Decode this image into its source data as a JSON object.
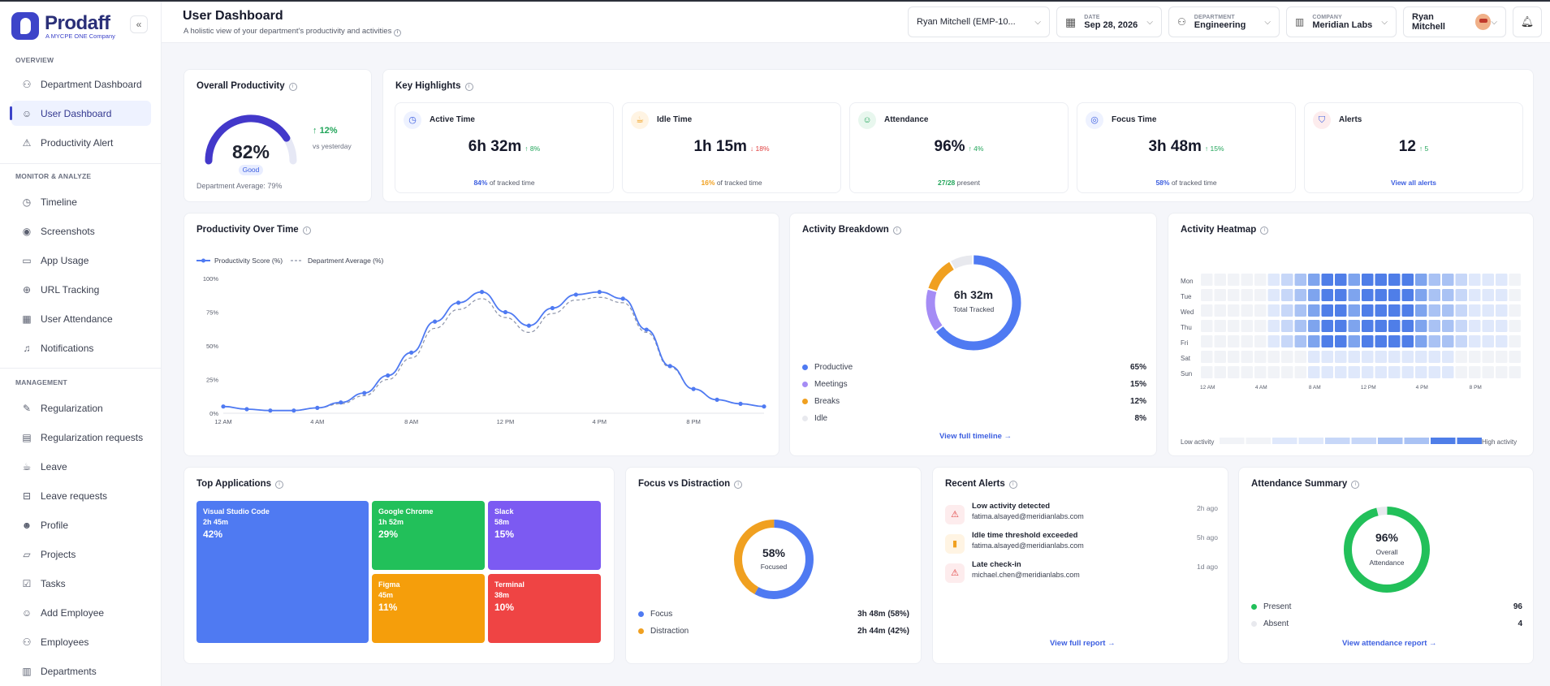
{
  "brand": {
    "name": "Prodaff",
    "tagline": "A MYCPE ONE Company"
  },
  "sidebar": {
    "sections": [
      "OVERVIEW",
      "MONITOR & ANALYZE",
      "MANAGEMENT"
    ],
    "items": [
      {
        "label": "Department Dashboard",
        "icon": "users-icon"
      },
      {
        "label": "User Dashboard",
        "icon": "user-icon"
      },
      {
        "label": "Productivity Alert",
        "icon": "warning-icon"
      },
      {
        "label": "Timeline",
        "icon": "clock-icon"
      },
      {
        "label": "Screenshots",
        "icon": "camera-icon"
      },
      {
        "label": "App Usage",
        "icon": "monitor-icon"
      },
      {
        "label": "URL Tracking",
        "icon": "globe-icon"
      },
      {
        "label": "User Attendance",
        "icon": "calendar-icon"
      },
      {
        "label": "Notifications",
        "icon": "bell-icon"
      },
      {
        "label": "Regularization",
        "icon": "edit-icon"
      },
      {
        "label": "Regularization requests",
        "icon": "document-icon"
      },
      {
        "label": "Leave",
        "icon": "cup-icon"
      },
      {
        "label": "Leave requests",
        "icon": "inbox-icon"
      },
      {
        "label": "Profile",
        "icon": "profile-icon"
      },
      {
        "label": "Projects",
        "icon": "folder-icon"
      },
      {
        "label": "Tasks",
        "icon": "check-icon"
      },
      {
        "label": "Add Employee",
        "icon": "user-plus-icon"
      },
      {
        "label": "Employees",
        "icon": "team-icon"
      },
      {
        "label": "Departments",
        "icon": "building-icon"
      }
    ]
  },
  "header": {
    "title": "User Dashboard",
    "subtitle": "A holistic view of your department's productivity and activities",
    "employee": "Ryan Mitchell (EMP-10...",
    "date_label": "DATE",
    "date_value": "Sep 28, 2026",
    "department_label": "DEPARTMENT",
    "department_value": "Engineering",
    "company_label": "COMPANY",
    "company_value": "Meridian Labs",
    "user_name": "Ryan Mitchell"
  },
  "overall": {
    "title": "Overall Productivity",
    "value": "82%",
    "value_num": 82,
    "status": "Good",
    "change": "12%",
    "change_label": "vs yesterday",
    "dept_avg": "Department Average: 79%"
  },
  "highlights": {
    "title": "Key Highlights",
    "items": [
      {
        "name": "Active Time",
        "value": "6h 32m",
        "delta": "↑ 8%",
        "foot_value": "84%",
        "foot_text": " of tracked time",
        "color": "#3d5fe0",
        "bg": "#eef2ff",
        "delta_color": "#22a55a",
        "icon": "clock-icon",
        "glyph": "◷"
      },
      {
        "name": "Idle Time",
        "value": "1h 15m",
        "delta": "↓ 18%",
        "foot_value": "16%",
        "foot_text": " of tracked time",
        "color": "#f0a020",
        "bg": "#fff4e3",
        "delta_color": "#e04040",
        "icon": "coffee-icon",
        "glyph": "☕"
      },
      {
        "name": "Attendance",
        "value": "96%",
        "delta": "↑ 4%",
        "foot_value": "27/28",
        "foot_text": " present",
        "color": "#22a55a",
        "bg": "#e8f7ee",
        "delta_color": "#22a55a",
        "icon": "users-icon",
        "glyph": "☺"
      },
      {
        "name": "Focus Time",
        "value": "3h 48m",
        "delta": "↑ 15%",
        "foot_value": "58%",
        "foot_text": " of tracked time",
        "color": "#3d5fe0",
        "bg": "#eef2ff",
        "delta_color": "#22a55a",
        "icon": "target-icon",
        "glyph": "◎"
      },
      {
        "name": "Alerts",
        "value": "12",
        "delta": "↑ 5",
        "foot_value": "View all alerts",
        "foot_text": "",
        "color": "#3d5fe0",
        "bg": "#fdeced",
        "delta_color": "#22a55a",
        "icon": "shield-icon",
        "glyph": "⛉"
      }
    ]
  },
  "prod_chart": {
    "title": "Productivity Over Time",
    "chart_data": {
      "type": "line",
      "title": "Productivity Over Time",
      "x": [
        "12 AM",
        "1 AM",
        "2 AM",
        "3 AM",
        "4 AM",
        "5 AM",
        "6 AM",
        "7 AM",
        "8 AM",
        "9 AM",
        "10 AM",
        "11 AM",
        "12 PM",
        "1 PM",
        "2 PM",
        "3 PM",
        "4 PM",
        "5 PM",
        "6 PM",
        "7 PM",
        "8 PM",
        "9 PM",
        "10 PM",
        "11 PM"
      ],
      "xticks": [
        "12 AM",
        "4 AM",
        "8 AM",
        "12 PM",
        "4 PM",
        "8 PM"
      ],
      "yticks": [
        "0%",
        "25%",
        "50%",
        "75%",
        "100%"
      ],
      "ylim": [
        0,
        100
      ],
      "series": [
        {
          "name": "Productivity Score (%)",
          "values": [
            5,
            3,
            2,
            2,
            4,
            8,
            15,
            28,
            45,
            68,
            82,
            90,
            75,
            65,
            78,
            88,
            90,
            85,
            62,
            35,
            18,
            10,
            7,
            5
          ]
        },
        {
          "name": "Department Average (%)",
          "values": [
            5,
            3,
            2,
            2,
            4,
            7,
            13,
            25,
            41,
            63,
            77,
            85,
            71,
            60,
            74,
            84,
            86,
            82,
            60,
            34,
            18,
            10,
            7,
            5
          ]
        }
      ],
      "legend": "top-left"
    }
  },
  "activity": {
    "title": "Activity Breakdown",
    "center_value": "6h 32m",
    "center_label": "Total Tracked",
    "link": "View full timeline →",
    "chart_data": {
      "type": "pie",
      "categories": [
        "Productive",
        "Meetings",
        "Breaks",
        "Idle"
      ],
      "values": [
        65,
        15,
        12,
        8
      ],
      "labels": [
        "65%",
        "15%",
        "12%",
        "8%"
      ],
      "colors": [
        "#4f7af2",
        "#a58cf5",
        "#f0a020",
        "#e8e9ee"
      ]
    }
  },
  "heatmap": {
    "title": "Activity Heatmap",
    "days": [
      "Mon",
      "Tue",
      "Wed",
      "Thu",
      "Fri",
      "Sat",
      "Sun"
    ],
    "hours_ticks": [
      "12 AM",
      "4 AM",
      "8 AM",
      "12 PM",
      "4 PM",
      "8 PM"
    ],
    "low": "Low activity",
    "high": "High activity",
    "chart_data": {
      "type": "heatmap",
      "rows": 7,
      "cols": 24,
      "values": [
        [
          0,
          0,
          0,
          0,
          0,
          1,
          2,
          3,
          4,
          5,
          5,
          4,
          5,
          5,
          5,
          5,
          4,
          3,
          3,
          2,
          1,
          1,
          1,
          0
        ],
        [
          0,
          0,
          0,
          0,
          0,
          1,
          2,
          3,
          4,
          5,
          5,
          4,
          5,
          5,
          5,
          5,
          4,
          3,
          3,
          2,
          1,
          1,
          1,
          0
        ],
        [
          0,
          0,
          0,
          0,
          0,
          1,
          2,
          3,
          4,
          5,
          5,
          4,
          5,
          5,
          5,
          5,
          4,
          3,
          3,
          2,
          1,
          1,
          1,
          0
        ],
        [
          0,
          0,
          0,
          0,
          0,
          1,
          2,
          3,
          4,
          5,
          5,
          4,
          5,
          5,
          5,
          5,
          4,
          3,
          3,
          2,
          1,
          1,
          1,
          0
        ],
        [
          0,
          0,
          0,
          0,
          0,
          1,
          2,
          3,
          4,
          5,
          5,
          4,
          5,
          5,
          5,
          5,
          4,
          3,
          3,
          2,
          1,
          1,
          1,
          0
        ],
        [
          0,
          0,
          0,
          0,
          0,
          0,
          0,
          0,
          1,
          1,
          1,
          1,
          1,
          1,
          1,
          1,
          1,
          1,
          1,
          0,
          0,
          0,
          0,
          0
        ],
        [
          0,
          0,
          0,
          0,
          0,
          0,
          0,
          0,
          1,
          1,
          1,
          1,
          1,
          1,
          1,
          1,
          1,
          1,
          1,
          0,
          0,
          0,
          0,
          0
        ]
      ],
      "scale": [
        "#f1f3f7",
        "#dfe8fb",
        "#c7d7f8",
        "#a9c2f4",
        "#7ea4ee",
        "#4f7ee8"
      ]
    }
  },
  "apps": {
    "title": "Top Applications",
    "items": [
      {
        "name": "Visual Studio Code",
        "time": "2h 45m",
        "pct": "42%",
        "color": "#4f7af2"
      },
      {
        "name": "Google Chrome",
        "time": "1h 52m",
        "pct": "29%",
        "color": "#22c05a"
      },
      {
        "name": "Slack",
        "time": "58m",
        "pct": "15%",
        "color": "#7c5af2"
      },
      {
        "name": "Figma",
        "time": "45m",
        "pct": "11%",
        "color": "#f59e0b"
      },
      {
        "name": "Terminal",
        "time": "38m",
        "pct": "10%",
        "color": "#ef4444"
      }
    ]
  },
  "focus": {
    "title": "Focus vs Distraction",
    "center_value": "58%",
    "center_label": "Focused",
    "chart_data": {
      "type": "pie",
      "categories": [
        "Focus",
        "Distraction"
      ],
      "values": [
        58,
        42
      ],
      "labels": [
        "3h 48m (58%)",
        "2h 44m (42%)"
      ],
      "colors": [
        "#4f7af2",
        "#f0a020"
      ]
    }
  },
  "alerts": {
    "title": "Recent Alerts",
    "link": "View full report →",
    "items": [
      {
        "title": "Low activity detected",
        "email": "fatima.alsayed@meridianlabs.com",
        "time": "2h ago",
        "icon": "warning-icon",
        "glyph": "⚠",
        "color": "#e04040",
        "bg": "#fdeced"
      },
      {
        "title": "Idle time threshold exceeded",
        "email": "fatima.alsayed@meridianlabs.com",
        "time": "5h ago",
        "icon": "bar-chart-icon",
        "glyph": "▮",
        "color": "#f0a020",
        "bg": "#fff4e3"
      },
      {
        "title": "Late check-in",
        "email": "michael.chen@meridianlabs.com",
        "time": "1d ago",
        "icon": "warning-icon",
        "glyph": "⚠",
        "color": "#e04040",
        "bg": "#fdeced"
      }
    ]
  },
  "attendance": {
    "title": "Attendance Summary",
    "center_value": "96%",
    "center_l1": "Overall",
    "center_l2": "Attendance",
    "link": "View attendance report →",
    "chart_data": {
      "type": "pie",
      "categories": [
        "Present",
        "Absent"
      ],
      "values": [
        96,
        4
      ],
      "labels": [
        "96",
        "4"
      ],
      "colors": [
        "#22c05a",
        "#e8e9ee"
      ]
    }
  }
}
